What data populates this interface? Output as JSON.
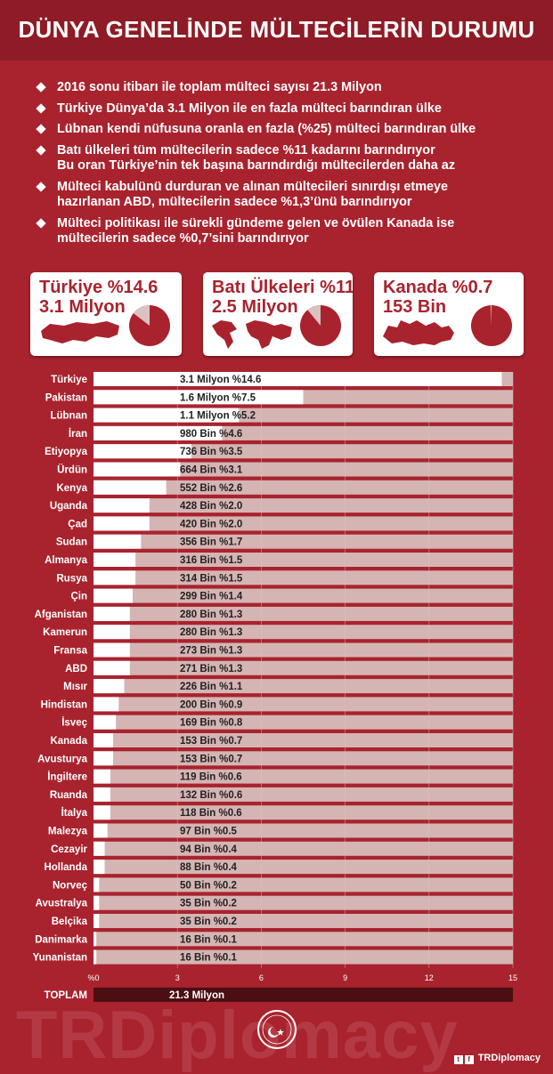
{
  "title": "DÜNYA GENELİNDE MÜLTECİLERİN DURUMU",
  "bullets": [
    [
      "2016 sonu itibarı ile toplam mülteci sayısı 21.3 Milyon"
    ],
    [
      "Türkiye Dünya’da 3.1 Milyon ile en fazla mülteci barındıran ülke"
    ],
    [
      "Lübnan kendi nüfusuna oranla en fazla (%25) mülteci barındıran ülke"
    ],
    [
      "Batı ülkeleri tüm mültecilerin sadece %11 kadarını barındırıyor",
      "Bu oran Türkiye’nin tek başına barındırdığı mültecilerden daha az"
    ],
    [
      "Mülteci kabulünü durduran ve alınan mültecileri sınırdışı etmeye",
      "hazırlanan ABD, mültecilerin sadece %1,3’ünü barındırıyor"
    ],
    [
      "Mülteci politikası ile sürekli gündeme gelen ve övülen Kanada ise",
      "mültecilerin sadece %0,7’sini barındırıyor"
    ]
  ],
  "cards": [
    {
      "label": "Türkiye %14.6",
      "value": "3.1 Milyon",
      "share": 14.6,
      "map_icon": "turkey-map-icon"
    },
    {
      "label": "Batı Ülkeleri %11",
      "value": "2.5 Milyon",
      "share": 11,
      "map_icon": "world-map-icon"
    },
    {
      "label": "Kanada %0.7",
      "value": "153 Bin",
      "share": 0.7,
      "map_icon": "canada-map-icon"
    }
  ],
  "chart_data": {
    "type": "bar",
    "orientation": "horizontal",
    "xunit": "Milyon",
    "xlim": [
      0,
      15
    ],
    "xticks": [
      0,
      3,
      6,
      9,
      12,
      15
    ],
    "xtick_labels": [
      "%0",
      "3",
      "6",
      "9",
      "12",
      "15"
    ],
    "categories": [
      "Türkiye",
      "Pakistan",
      "Lübnan",
      "İran",
      "Etiyopya",
      "Ürdün",
      "Kenya",
      "Uganda",
      "Çad",
      "Sudan",
      "Almanya",
      "Rusya",
      "Çin",
      "Afganistan",
      "Kamerun",
      "Fransa",
      "ABD",
      "Mısır",
      "Hindistan",
      "İsveç",
      "Kanada",
      "Avusturya",
      "İngiltere",
      "Ruanda",
      "İtalya",
      "Malezya",
      "Cezayir",
      "Hollanda",
      "Norveç",
      "Avustralya",
      "Belçika",
      "Danimarka",
      "Yunanistan"
    ],
    "values": [
      14.6,
      7.5,
      5.2,
      4.6,
      3.5,
      3.1,
      2.6,
      2.0,
      2.0,
      1.7,
      1.5,
      1.5,
      1.4,
      1.3,
      1.3,
      1.3,
      1.3,
      1.1,
      0.9,
      0.8,
      0.7,
      0.7,
      0.6,
      0.6,
      0.6,
      0.5,
      0.4,
      0.4,
      0.2,
      0.2,
      0.2,
      0.1,
      0.1
    ],
    "data_labels": [
      "3.1 Milyon %14.6",
      "1.6 Milyon %7.5",
      "1.1 Milyon %5.2",
      "980 Bin %4.6",
      "736 Bin %3.5",
      "664 Bin %3.1",
      "552 Bin %2.6",
      "428 Bin %2.0",
      "420 Bin %2.0",
      "356 Bin %1.7",
      "316 Bin %1.5",
      "314 Bin %1.5",
      "299 Bin %1.4",
      "280 Bin %1.3",
      "280 Bin %1.3",
      "273 Bin %1.3",
      "271 Bin %1.3",
      "226 Bin %1.1",
      "200 Bin %0.9",
      "169 Bin %0.8",
      "153 Bin %0.7",
      "153 Bin %0.7",
      "119 Bin %0.6",
      "132 Bin %0.6",
      "118 Bin %0.6",
      "97 Bin %0.5",
      "94 Bin %0.4",
      "88 Bin %0.4",
      "50 Bin %0.2",
      "35 Bin %0.2",
      "35 Bin %0.2",
      "16 Bin %0.1",
      "16 Bin %0.1"
    ],
    "total_label": "TOPLAM",
    "total_value": "21.3 Milyon",
    "colors": {
      "bar": "#ffffff",
      "track": "#d9c2c0",
      "total_bar": "#4a0e13"
    }
  },
  "watermark": "TRDiplomacy",
  "emblem_text": "TR DIPLOMACY",
  "footer": {
    "handle": "TRDiplomacy",
    "icons": [
      "twitter-icon",
      "facebook-icon"
    ]
  },
  "colors": {
    "background": "#a8232e",
    "header": "#8e1b25",
    "accent": "#a8232e"
  }
}
